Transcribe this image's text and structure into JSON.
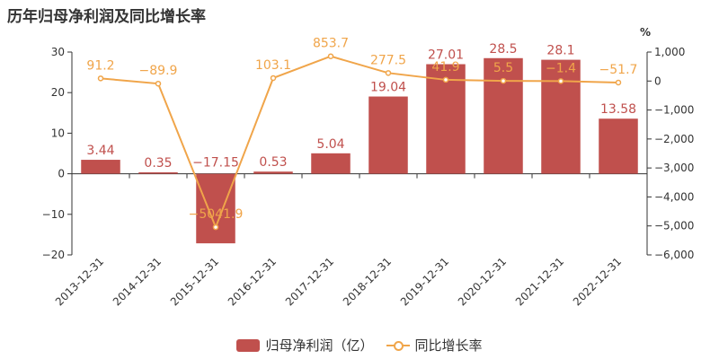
{
  "title": "历年归母净利润及同比增长率",
  "colors": {
    "bar": "#c0504d",
    "line": "#f0a54a",
    "axis": "#333333"
  },
  "chart_data": {
    "type": "bar+line",
    "categories": [
      "2013-12-31",
      "2014-12-31",
      "2015-12-31",
      "2016-12-31",
      "2017-12-31",
      "2018-12-31",
      "2019-12-31",
      "2020-12-31",
      "2021-12-31",
      "2022-12-31"
    ],
    "series": [
      {
        "name": "归母净利润（亿）",
        "type": "bar",
        "axis": "left",
        "values": [
          3.44,
          0.35,
          -17.15,
          0.53,
          5.04,
          19.04,
          27.01,
          28.5,
          28.1,
          13.58
        ],
        "labels": [
          "3.44",
          "0.35",
          "−17.15",
          "0.53",
          "5.04",
          "19.04",
          "27.01",
          "28.5",
          "28.1",
          "13.58"
        ]
      },
      {
        "name": "同比增长率",
        "type": "line",
        "axis": "right",
        "values": [
          91.2,
          -89.9,
          -5041.9,
          103.1,
          853.7,
          277.5,
          41.9,
          5.5,
          -1.4,
          -51.7
        ],
        "labels": [
          "91.2",
          "−89.9",
          "−5041.9",
          "103.1",
          "853.7",
          "277.5",
          "41.9",
          "5.5",
          "−1.4",
          "−51.7"
        ]
      }
    ],
    "y_left": {
      "min": -20,
      "max": 30,
      "ticks": [
        "30",
        "20",
        "10",
        "0",
        "−10",
        "−20"
      ],
      "tick_values": [
        30,
        20,
        10,
        0,
        -10,
        -20
      ]
    },
    "y_right": {
      "min": -6000,
      "max": 1000,
      "unit": "%",
      "ticks": [
        "1,000",
        "0",
        "−1,000",
        "−2,000",
        "−3,000",
        "−4,000",
        "−5,000",
        "−6,000"
      ],
      "tick_values": [
        1000,
        0,
        -1000,
        -2000,
        -3000,
        -4000,
        -5000,
        -6000
      ]
    },
    "grid": false,
    "legend_position": "bottom"
  }
}
